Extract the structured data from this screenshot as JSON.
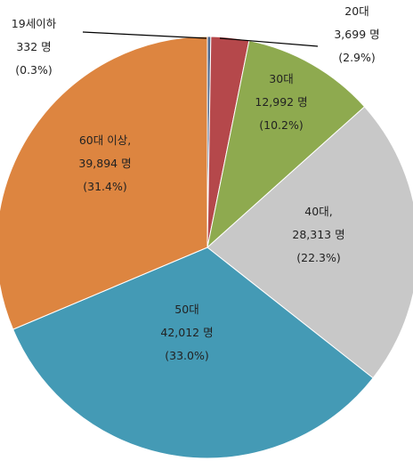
{
  "chart_data": {
    "type": "pie",
    "slices": [
      {
        "label": "19세이하",
        "count_text": "332 명",
        "pct_text": "(0.3%)",
        "value": 332,
        "color": "#4F6A8F"
      },
      {
        "label": "20대",
        "count_text": "3,699 명",
        "pct_text": "(2.9%)",
        "value": 3699,
        "color": "#B5484B"
      },
      {
        "label": "30대",
        "count_text": "12,992 명",
        "pct_text": "(10.2%)",
        "value": 12992,
        "color": "#8EAA4F"
      },
      {
        "label": "40대,",
        "count_text": "28,313 명",
        "pct_text": "(22.3%)",
        "value": 28313,
        "color": "#C8C8C8"
      },
      {
        "label": "50대",
        "count_text": "42,012 명",
        "pct_text": "(33.0%)",
        "value": 42012,
        "color": "#449AB5"
      },
      {
        "label": "60대 이상,",
        "count_text": "39,894 명",
        "pct_text": "(31.4%)",
        "value": 39894,
        "color": "#DD8540"
      }
    ]
  }
}
